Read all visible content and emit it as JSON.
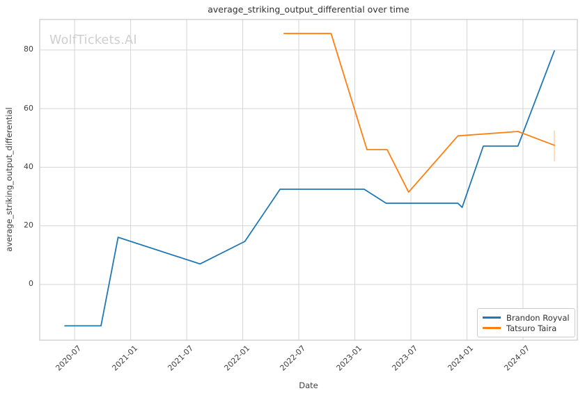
{
  "figure": {
    "title": "average_striking_output_differential over time",
    "watermark": "WolfTickets.AI",
    "xlabel": "Date",
    "ylabel": "average_striking_output_differential"
  },
  "legend": {
    "position": "lower right",
    "items": [
      {
        "label": "Brandon Royval",
        "color": "#1f77b4"
      },
      {
        "label": "Tatsuro Taira",
        "color": "#ff7f0e"
      }
    ]
  },
  "chart_data": {
    "type": "line",
    "title": "average_striking_output_differential over time",
    "xlabel": "Date",
    "ylabel": "average_striking_output_differential",
    "x_tick_labels": [
      "2020-07",
      "2021-01",
      "2021-07",
      "2022-01",
      "2022-07",
      "2023-01",
      "2023-07",
      "2024-01",
      "2024-07"
    ],
    "y_ticks": [
      0,
      20,
      40,
      60,
      80
    ],
    "x_range": [
      "2020-03-09",
      "2024-12-26"
    ],
    "y_range": [
      -19.0,
      90.4
    ],
    "grid": true,
    "legend_position": "lower right",
    "series": [
      {
        "name": "Brandon Royval",
        "color": "#1f77b4",
        "points": [
          [
            "2020-05-30",
            -14.1
          ],
          [
            "2020-09-26",
            -14.1
          ],
          [
            "2020-11-21",
            16.1
          ],
          [
            "2021-08-14",
            7.0
          ],
          [
            "2022-01-08",
            14.7
          ],
          [
            "2022-05-01",
            32.5
          ],
          [
            "2023-02-01",
            32.5
          ],
          [
            "2023-04-12",
            27.7
          ],
          [
            "2023-12-02",
            27.7
          ],
          [
            "2023-12-16",
            26.3
          ],
          [
            "2024-02-24",
            47.2
          ],
          [
            "2024-06-15",
            47.2
          ],
          [
            "2024-10-12",
            79.7
          ]
        ]
      },
      {
        "name": "Tatsuro Taira",
        "color": "#ff7f0e",
        "points": [
          [
            "2022-05-14",
            85.6
          ],
          [
            "2022-10-15",
            85.6
          ],
          [
            "2023-02-10",
            46.0
          ],
          [
            "2023-04-15",
            46.0
          ],
          [
            "2023-06-24",
            31.5
          ],
          [
            "2023-12-02",
            50.7
          ],
          [
            "2024-06-15",
            52.2
          ],
          [
            "2024-10-12",
            47.5
          ]
        ],
        "endpoint_error_bar": {
          "date": "2024-10-12",
          "low": 42.0,
          "high": 52.6
        }
      }
    ],
    "colors": {
      "grid": "#d5d5d5",
      "border": "#c9c9c9",
      "text": "#404040",
      "watermark": "#cecece",
      "background": "#ffffff"
    }
  }
}
